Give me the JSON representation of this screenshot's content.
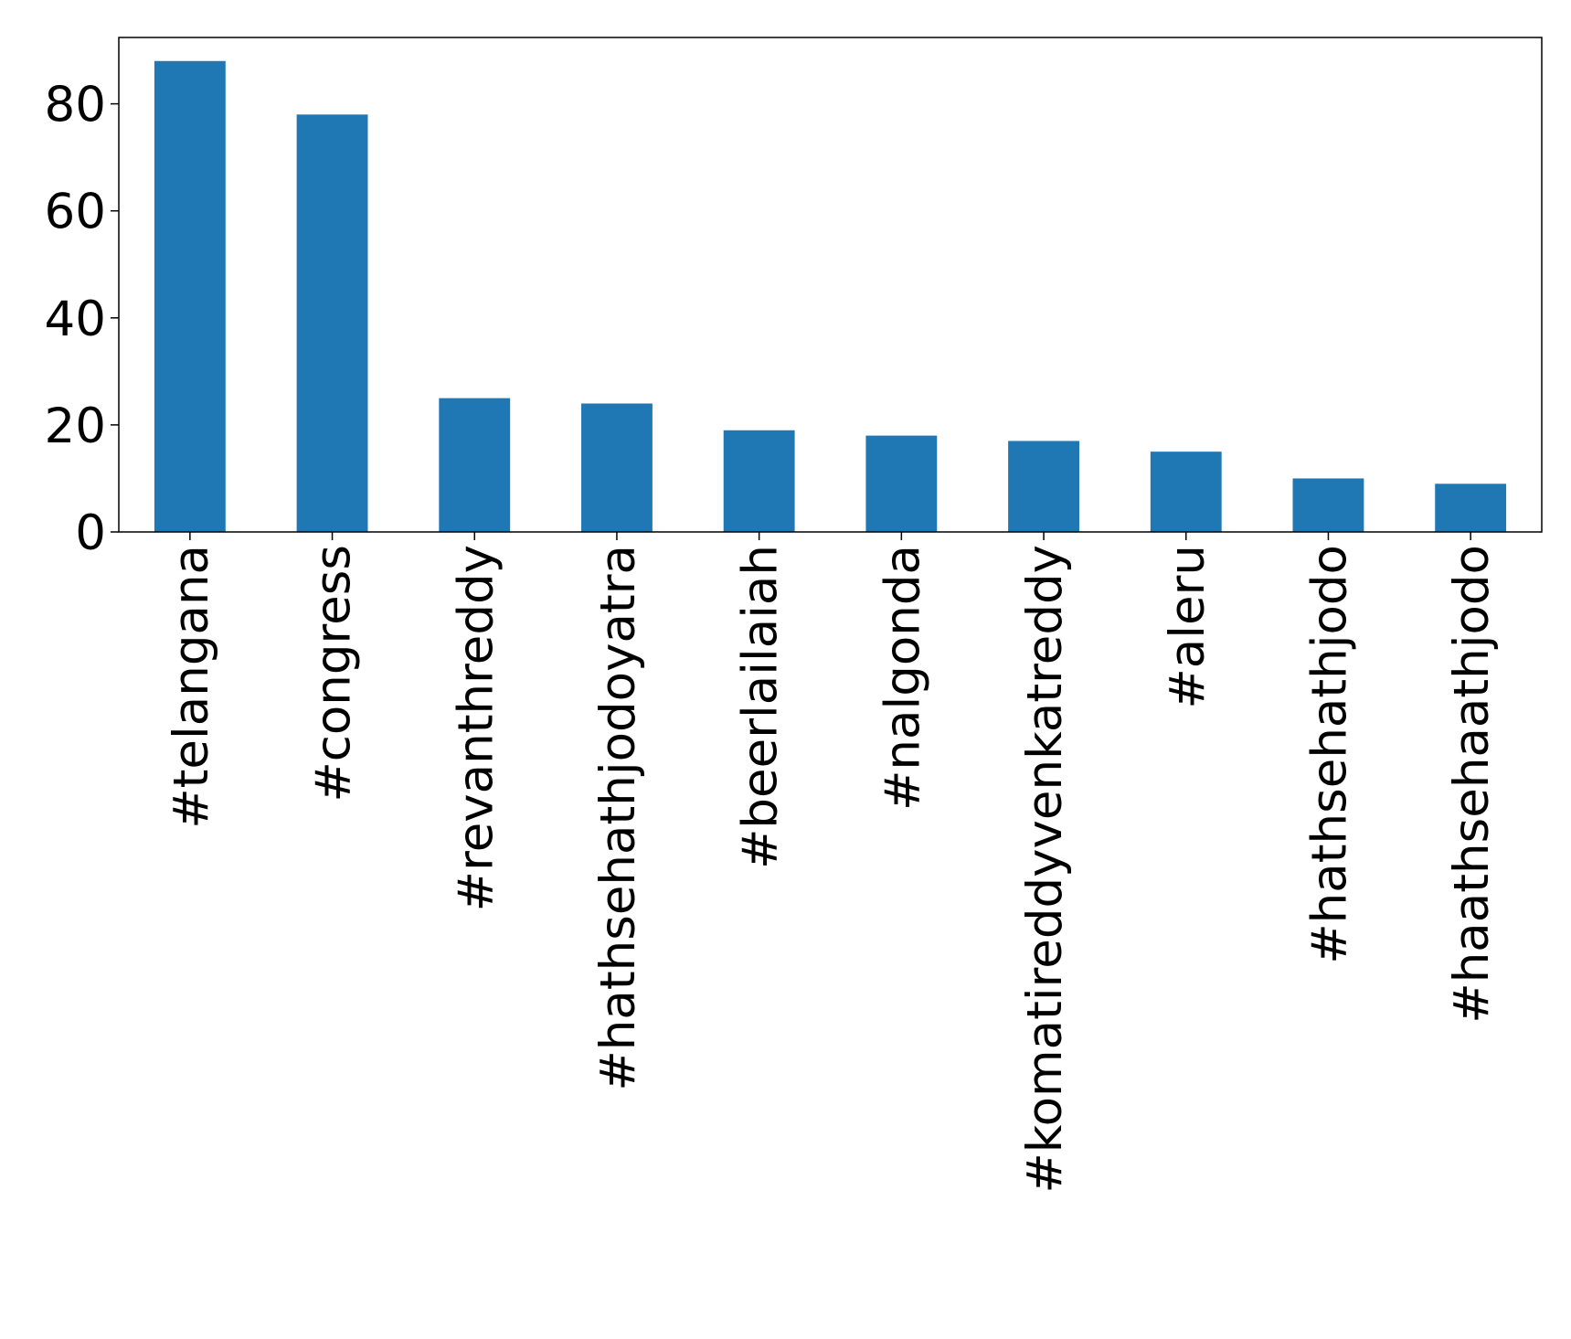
{
  "chart_data": {
    "type": "bar",
    "categories": [
      "#telangana",
      "#congress",
      "#revanthreddy",
      "#hathsehathjodoyatra",
      "#beerlailaiah",
      "#nalgonda",
      "#komatireddyvenkatreddy",
      "#aleru",
      "#hathsehathjodo",
      "#haathsehaathjodo"
    ],
    "values": [
      88,
      78,
      25,
      24,
      19,
      18,
      17,
      15,
      10,
      9
    ],
    "color": "#1f77b4",
    "ylim": [
      0,
      92.4
    ],
    "yticks": [
      0,
      20,
      40,
      60,
      80
    ],
    "grid": false
  }
}
